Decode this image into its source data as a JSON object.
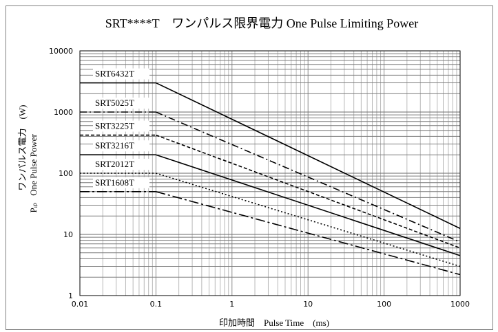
{
  "chart_data": {
    "type": "line",
    "title": "SRT****T　ワンパルス限界電力 One Pulse Limiting Power",
    "xlabel": "印加時間　Pulse Time　(ms)",
    "ylabel_line1": "ワンパルス電力　(W)",
    "ylabel_line2": "One Pulse Power",
    "ylabel_symbol": "Pᵢₚ",
    "x_scale": "log",
    "y_scale": "log",
    "xlim": [
      0.01,
      1000
    ],
    "ylim": [
      1,
      10000
    ],
    "x_ticks": [
      {
        "value": 0.01,
        "label": "0.01"
      },
      {
        "value": 0.1,
        "label": "0.1"
      },
      {
        "value": 1,
        "label": "1"
      },
      {
        "value": 10,
        "label": "10"
      },
      {
        "value": 100,
        "label": "100"
      },
      {
        "value": 1000,
        "label": "1000"
      }
    ],
    "y_ticks": [
      {
        "value": 1,
        "label": "1"
      },
      {
        "value": 10,
        "label": "10"
      },
      {
        "value": 100,
        "label": "100"
      },
      {
        "value": 1000,
        "label": "1000"
      },
      {
        "value": 10000,
        "label": "10000"
      }
    ],
    "grid": true,
    "series": [
      {
        "name": "SRT6432T",
        "dash": "solid",
        "x": [
          0.1,
          1000
        ],
        "y": [
          3000,
          12.5
        ]
      },
      {
        "name": "SRT5025T",
        "dash": "dashdot",
        "x": [
          0.1,
          1000
        ],
        "y": [
          1000,
          7.5
        ]
      },
      {
        "name": "SRT3225T",
        "dash": "dashed",
        "x": [
          0.1,
          1000
        ],
        "y": [
          420,
          6
        ]
      },
      {
        "name": "SRT3216T",
        "dash": "solid",
        "x": [
          0.1,
          1000
        ],
        "y": [
          200,
          4.5
        ]
      },
      {
        "name": "SRT2012T",
        "dash": "dotted",
        "x": [
          0.1,
          1000
        ],
        "y": [
          100,
          3
        ]
      },
      {
        "name": "SRT1608T",
        "dash": "longdashdot",
        "x": [
          0.1,
          1000
        ],
        "y": [
          50,
          2.2
        ]
      }
    ]
  }
}
